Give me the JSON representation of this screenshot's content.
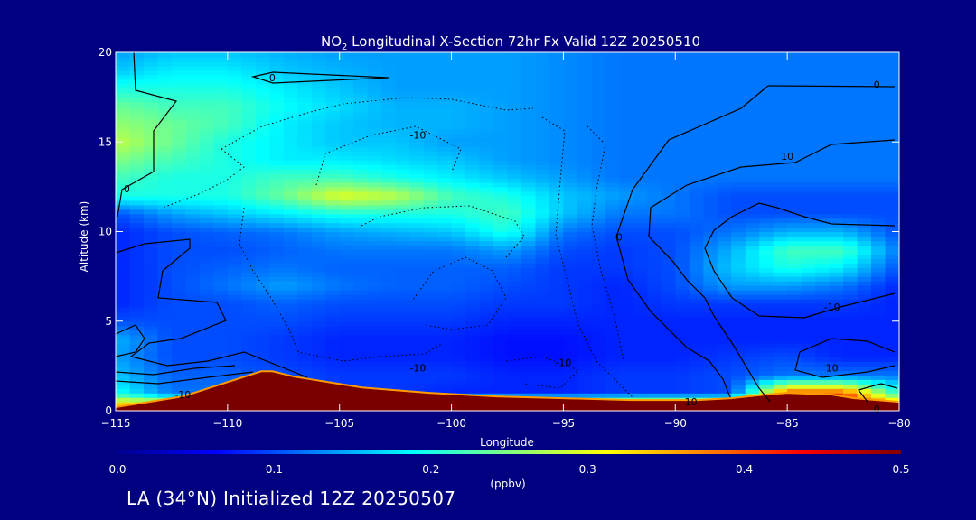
{
  "footer": "LA (34°N) Initialized 12Z 20250507",
  "colors": {
    "background": "#000080",
    "colormap": [
      "#00008f",
      "#0000ff",
      "#0080ff",
      "#00ffff",
      "#80ff80",
      "#ffff00",
      "#ff8000",
      "#ff0000",
      "#800000"
    ],
    "contour_line": "#000000"
  },
  "chart_data": {
    "type": "heatmap",
    "title_prefix": "NO",
    "title_sub": "2",
    "title_suffix": " Longitudinal X-Section 72hr  Fx Valid 12Z 20250510",
    "xlabel": "Longitude",
    "ylabel": "Altitude (km)",
    "xlim": [
      -115,
      -80
    ],
    "ylim": [
      0,
      20
    ],
    "xticks": [
      -115,
      -110,
      -105,
      -100,
      -95,
      -90,
      -85,
      -80
    ],
    "yticks": [
      0,
      5,
      10,
      15,
      20
    ],
    "colorbar": {
      "label": "(ppbv)",
      "range": [
        0.0,
        0.5
      ],
      "ticks": [
        "0.0",
        "0.1",
        "0.2",
        "0.3",
        "0.4",
        "0.5"
      ]
    },
    "x_points": [
      -115,
      -112.5,
      -110,
      -107.5,
      -105,
      -102.5,
      -100,
      -97.5,
      -95,
      -92.5,
      -90,
      -87.5,
      -85,
      -82.5,
      -80
    ],
    "y_points": [
      0,
      1,
      2,
      3,
      4,
      5,
      6,
      7,
      8,
      9,
      10,
      11,
      12,
      13,
      14,
      15,
      16,
      17,
      18,
      19,
      20
    ],
    "values": [
      [
        0.42,
        0.45,
        0.45,
        0.45,
        0.45,
        0.45,
        0.48,
        0.48,
        0.48,
        0.48,
        0.48,
        0.48,
        0.48,
        0.48,
        0.45
      ],
      [
        0.2,
        0.12,
        0.12,
        0.1,
        0.09,
        0.09,
        0.08,
        0.08,
        0.08,
        0.09,
        0.09,
        0.1,
        0.4,
        0.4,
        0.2
      ],
      [
        0.16,
        0.11,
        0.11,
        0.1,
        0.09,
        0.09,
        0.09,
        0.08,
        0.08,
        0.09,
        0.09,
        0.1,
        0.12,
        0.12,
        0.12
      ],
      [
        0.14,
        0.1,
        0.1,
        0.09,
        0.08,
        0.08,
        0.08,
        0.07,
        0.07,
        0.08,
        0.08,
        0.09,
        0.1,
        0.08,
        0.08
      ],
      [
        0.15,
        0.1,
        0.1,
        0.09,
        0.08,
        0.08,
        0.08,
        0.07,
        0.07,
        0.08,
        0.08,
        0.08,
        0.08,
        0.08,
        0.08
      ],
      [
        0.1,
        0.1,
        0.1,
        0.1,
        0.09,
        0.09,
        0.09,
        0.08,
        0.08,
        0.08,
        0.08,
        0.08,
        0.08,
        0.08,
        0.08
      ],
      [
        0.08,
        0.1,
        0.1,
        0.11,
        0.1,
        0.1,
        0.1,
        0.09,
        0.09,
        0.08,
        0.09,
        0.09,
        0.09,
        0.09,
        0.08
      ],
      [
        0.08,
        0.1,
        0.12,
        0.14,
        0.12,
        0.11,
        0.11,
        0.1,
        0.09,
        0.08,
        0.1,
        0.14,
        0.14,
        0.12,
        0.08
      ],
      [
        0.08,
        0.1,
        0.11,
        0.12,
        0.11,
        0.11,
        0.11,
        0.11,
        0.09,
        0.09,
        0.1,
        0.16,
        0.2,
        0.18,
        0.1
      ],
      [
        0.08,
        0.1,
        0.1,
        0.11,
        0.12,
        0.12,
        0.12,
        0.14,
        0.1,
        0.09,
        0.1,
        0.15,
        0.22,
        0.22,
        0.12
      ],
      [
        0.08,
        0.1,
        0.11,
        0.12,
        0.14,
        0.15,
        0.16,
        0.2,
        0.12,
        0.1,
        0.1,
        0.12,
        0.15,
        0.15,
        0.1
      ],
      [
        0.1,
        0.14,
        0.16,
        0.18,
        0.2,
        0.2,
        0.2,
        0.22,
        0.16,
        0.12,
        0.12,
        0.1,
        0.1,
        0.1,
        0.1
      ],
      [
        0.2,
        0.2,
        0.2,
        0.24,
        0.3,
        0.28,
        0.22,
        0.2,
        0.16,
        0.14,
        0.12,
        0.1,
        0.1,
        0.1,
        0.1
      ],
      [
        0.22,
        0.2,
        0.2,
        0.22,
        0.22,
        0.2,
        0.18,
        0.16,
        0.14,
        0.12,
        0.12,
        0.12,
        0.12,
        0.12,
        0.12
      ],
      [
        0.25,
        0.22,
        0.2,
        0.18,
        0.18,
        0.17,
        0.16,
        0.14,
        0.13,
        0.12,
        0.12,
        0.12,
        0.12,
        0.12,
        0.12
      ],
      [
        0.28,
        0.24,
        0.2,
        0.18,
        0.16,
        0.16,
        0.14,
        0.14,
        0.13,
        0.12,
        0.12,
        0.12,
        0.12,
        0.12,
        0.12
      ],
      [
        0.26,
        0.24,
        0.22,
        0.18,
        0.16,
        0.15,
        0.15,
        0.14,
        0.13,
        0.12,
        0.12,
        0.12,
        0.12,
        0.12,
        0.12
      ],
      [
        0.24,
        0.22,
        0.22,
        0.19,
        0.17,
        0.15,
        0.15,
        0.14,
        0.13,
        0.12,
        0.12,
        0.12,
        0.12,
        0.12,
        0.12
      ],
      [
        0.2,
        0.2,
        0.2,
        0.18,
        0.16,
        0.14,
        0.14,
        0.14,
        0.13,
        0.12,
        0.12,
        0.12,
        0.12,
        0.12,
        0.12
      ],
      [
        0.16,
        0.18,
        0.18,
        0.16,
        0.15,
        0.14,
        0.14,
        0.14,
        0.13,
        0.12,
        0.12,
        0.12,
        0.12,
        0.12,
        0.12
      ],
      [
        0.14,
        0.16,
        0.16,
        0.15,
        0.14,
        0.14,
        0.14,
        0.14,
        0.13,
        0.12,
        0.12,
        0.12,
        0.12,
        0.12,
        0.12
      ]
    ],
    "terrain": {
      "x": [
        -115,
        -114,
        -113,
        -112,
        -111,
        -110,
        -109,
        -108.5,
        -108,
        -107,
        -106,
        -105,
        -104,
        -103,
        -101,
        -98,
        -95,
        -92,
        -89,
        -87.5,
        -86,
        -85,
        -83,
        -82,
        -81,
        -80
      ],
      "y": [
        0.2,
        0.4,
        0.6,
        0.8,
        1.2,
        1.6,
        2.0,
        2.2,
        2.2,
        1.9,
        1.7,
        1.5,
        1.3,
        1.2,
        1.0,
        0.8,
        0.7,
        0.6,
        0.6,
        0.7,
        0.9,
        1.0,
        0.9,
        0.7,
        0.6,
        0.5
      ]
    },
    "contour_labels": [
      {
        "text": "0",
        "x": -108,
        "y": 18.6
      },
      {
        "text": "-10",
        "x": -101.5,
        "y": 15.4
      },
      {
        "text": "0",
        "x": -114.5,
        "y": 12.4
      },
      {
        "text": "-10",
        "x": -101.5,
        "y": 2.4
      },
      {
        "text": "-10",
        "x": -95,
        "y": 2.7
      },
      {
        "text": "-10",
        "x": -112,
        "y": 0.9
      },
      {
        "text": "10",
        "x": -89.3,
        "y": 0.5
      },
      {
        "text": "0",
        "x": -92.5,
        "y": 9.7
      },
      {
        "text": "10",
        "x": -85,
        "y": 14.2
      },
      {
        "text": "-10",
        "x": -83,
        "y": 5.8
      },
      {
        "text": "0",
        "x": -81,
        "y": 18.2
      },
      {
        "text": "10",
        "x": -83,
        "y": 2.4
      },
      {
        "text": "0",
        "x": -81,
        "y": 0.1
      }
    ]
  }
}
